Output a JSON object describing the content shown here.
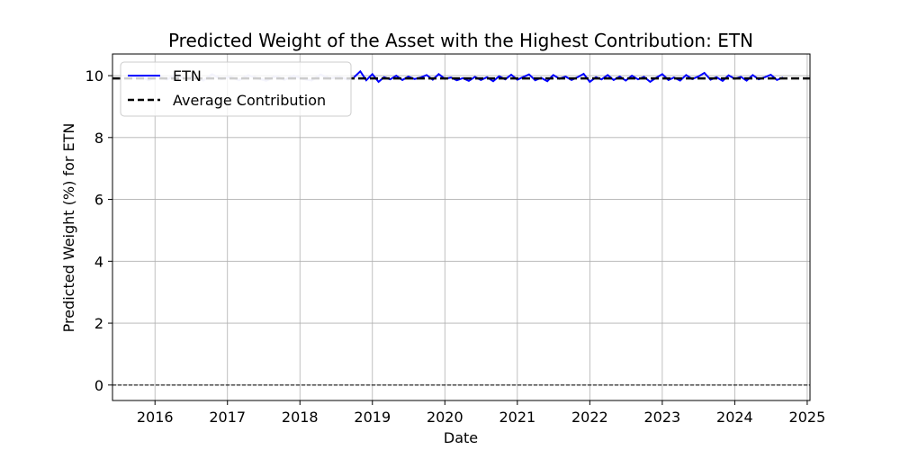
{
  "chart_data": {
    "type": "line",
    "title": "Predicted Weight of the Asset with the Highest Contribution: ETN",
    "xlabel": "Date",
    "ylabel": "Predicted Weight (%) for ETN",
    "xlim": [
      "2015-06-01",
      "2025-01-15"
    ],
    "ylim": [
      -0.5,
      10.7
    ],
    "x_ticks": [
      "2016",
      "2017",
      "2018",
      "2019",
      "2020",
      "2021",
      "2022",
      "2023",
      "2024",
      "2025"
    ],
    "y_ticks": [
      0,
      2,
      4,
      6,
      8,
      10
    ],
    "grid": true,
    "legend_position": "upper-left",
    "colors": {
      "series": "#0000ff",
      "series_faded": "#c8c8f0",
      "average": "#000000",
      "zero_line": "#000000",
      "grid": "#b0b0b0"
    },
    "series": [
      {
        "name": "ETN",
        "style": "solid",
        "faded_before": "2018-10-01",
        "points": [
          [
            "2015-09-01",
            9.92
          ],
          [
            "2015-10-15",
            9.97
          ],
          [
            "2015-12-01",
            9.86
          ],
          [
            "2016-01-15",
            9.98
          ],
          [
            "2016-03-01",
            9.88
          ],
          [
            "2016-04-15",
            10.02
          ],
          [
            "2016-06-01",
            9.9
          ],
          [
            "2016-07-15",
            9.97
          ],
          [
            "2016-09-01",
            9.85
          ],
          [
            "2016-10-15",
            10.04
          ],
          [
            "2016-12-01",
            9.89
          ],
          [
            "2017-01-15",
            9.96
          ],
          [
            "2017-03-01",
            9.86
          ],
          [
            "2017-04-15",
            10.01
          ],
          [
            "2017-06-01",
            9.92
          ],
          [
            "2017-07-15",
            9.84
          ],
          [
            "2017-09-01",
            9.98
          ],
          [
            "2017-10-15",
            9.87
          ],
          [
            "2017-12-01",
            10.0
          ],
          [
            "2018-01-15",
            9.9
          ],
          [
            "2018-03-01",
            9.85
          ],
          [
            "2018-04-15",
            10.03
          ],
          [
            "2018-06-01",
            9.91
          ],
          [
            "2018-07-15",
            9.96
          ],
          [
            "2018-09-01",
            9.88
          ],
          [
            "2018-10-01",
            9.95
          ],
          [
            "2018-11-01",
            10.14
          ],
          [
            "2018-12-01",
            9.85
          ],
          [
            "2019-01-01",
            10.05
          ],
          [
            "2019-02-01",
            9.8
          ],
          [
            "2019-03-01",
            9.95
          ],
          [
            "2019-04-01",
            9.88
          ],
          [
            "2019-05-01",
            10.0
          ],
          [
            "2019-06-01",
            9.86
          ],
          [
            "2019-07-01",
            9.97
          ],
          [
            "2019-08-01",
            9.89
          ],
          [
            "2019-09-01",
            9.94
          ],
          [
            "2019-10-01",
            10.02
          ],
          [
            "2019-11-01",
            9.87
          ],
          [
            "2019-12-01",
            10.05
          ],
          [
            "2020-01-01",
            9.9
          ],
          [
            "2020-02-01",
            9.94
          ],
          [
            "2020-03-01",
            9.85
          ],
          [
            "2020-04-01",
            9.92
          ],
          [
            "2020-05-01",
            9.83
          ],
          [
            "2020-06-01",
            9.96
          ],
          [
            "2020-07-01",
            9.86
          ],
          [
            "2020-08-01",
            9.95
          ],
          [
            "2020-09-01",
            9.82
          ],
          [
            "2020-10-01",
            9.98
          ],
          [
            "2020-11-01",
            9.88
          ],
          [
            "2020-12-01",
            10.03
          ],
          [
            "2021-01-01",
            9.87
          ],
          [
            "2021-02-01",
            9.96
          ],
          [
            "2021-03-01",
            10.04
          ],
          [
            "2021-04-01",
            9.85
          ],
          [
            "2021-05-01",
            9.93
          ],
          [
            "2021-06-01",
            9.82
          ],
          [
            "2021-07-01",
            10.02
          ],
          [
            "2021-08-01",
            9.9
          ],
          [
            "2021-09-01",
            9.97
          ],
          [
            "2021-10-01",
            9.86
          ],
          [
            "2021-11-01",
            9.95
          ],
          [
            "2021-12-01",
            10.06
          ],
          [
            "2022-01-01",
            9.8
          ],
          [
            "2022-02-01",
            9.95
          ],
          [
            "2022-03-01",
            9.88
          ],
          [
            "2022-04-01",
            10.02
          ],
          [
            "2022-05-01",
            9.86
          ],
          [
            "2022-06-01",
            9.97
          ],
          [
            "2022-07-01",
            9.84
          ],
          [
            "2022-08-01",
            10.0
          ],
          [
            "2022-09-01",
            9.88
          ],
          [
            "2022-10-01",
            9.96
          ],
          [
            "2022-11-01",
            9.8
          ],
          [
            "2022-12-01",
            9.93
          ],
          [
            "2023-01-01",
            10.05
          ],
          [
            "2023-02-01",
            9.86
          ],
          [
            "2023-03-01",
            9.94
          ],
          [
            "2023-04-01",
            9.84
          ],
          [
            "2023-05-01",
            10.02
          ],
          [
            "2023-06-01",
            9.89
          ],
          [
            "2023-07-01",
            9.97
          ],
          [
            "2023-08-01",
            10.09
          ],
          [
            "2023-09-01",
            9.87
          ],
          [
            "2023-10-01",
            9.95
          ],
          [
            "2023-11-01",
            9.83
          ],
          [
            "2023-12-01",
            10.01
          ],
          [
            "2024-01-01",
            9.9
          ],
          [
            "2024-02-01",
            9.96
          ],
          [
            "2024-03-01",
            9.84
          ],
          [
            "2024-04-01",
            10.02
          ],
          [
            "2024-05-01",
            9.88
          ],
          [
            "2024-06-01",
            9.95
          ],
          [
            "2024-07-01",
            10.03
          ],
          [
            "2024-08-01",
            9.86
          ],
          [
            "2024-09-01",
            9.94
          ]
        ]
      },
      {
        "name": "Average Contribution",
        "style": "dashed",
        "value": 9.91
      }
    ],
    "reference_line": {
      "style": "dashed",
      "value": 0
    }
  }
}
